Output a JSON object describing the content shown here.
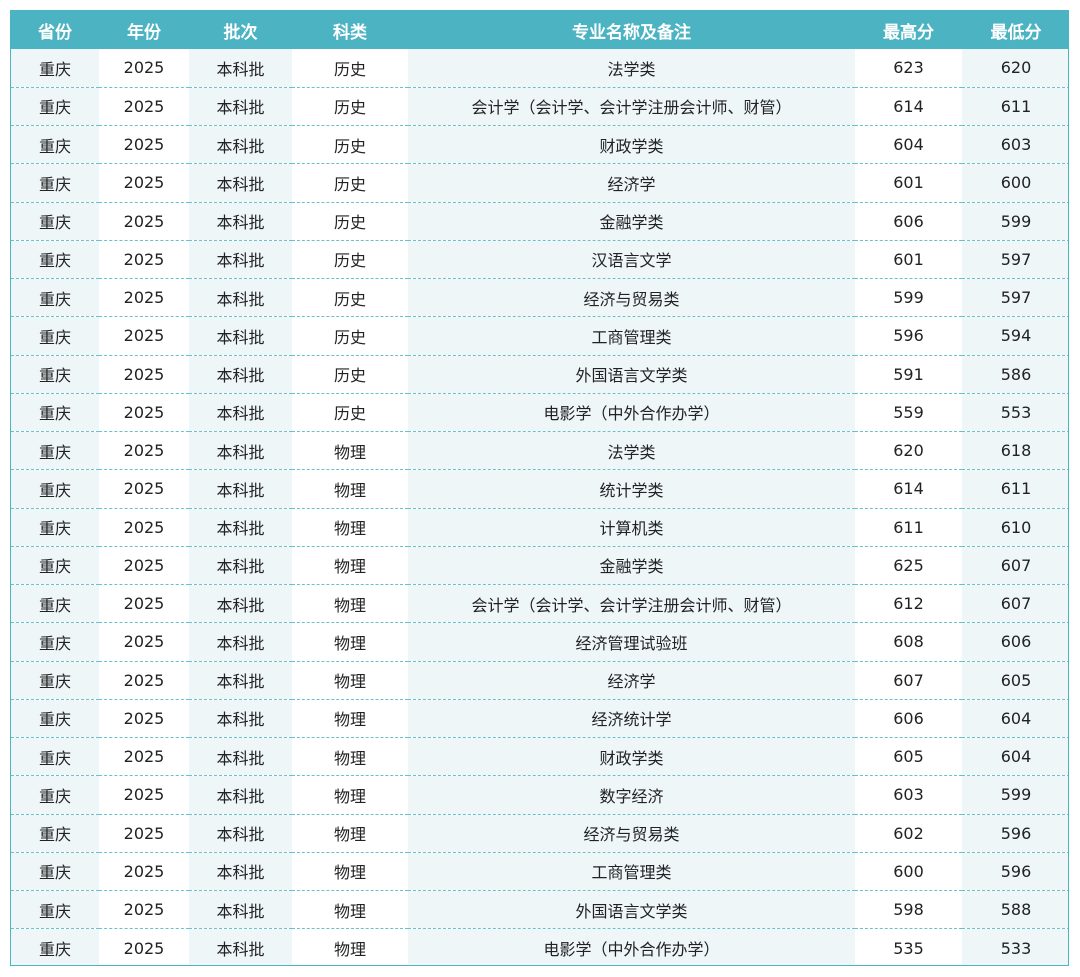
{
  "table": {
    "headers": [
      "省份",
      "年份",
      "批次",
      "科类",
      "专业名称及备注",
      "最高分",
      "最低分"
    ],
    "rows": [
      [
        "重庆",
        "2025",
        "本科批",
        "历史",
        "法学类",
        "623",
        "620"
      ],
      [
        "重庆",
        "2025",
        "本科批",
        "历史",
        "会计学（会计学、会计学注册会计师、财管）",
        "614",
        "611"
      ],
      [
        "重庆",
        "2025",
        "本科批",
        "历史",
        "财政学类",
        "604",
        "603"
      ],
      [
        "重庆",
        "2025",
        "本科批",
        "历史",
        "经济学",
        "601",
        "600"
      ],
      [
        "重庆",
        "2025",
        "本科批",
        "历史",
        "金融学类",
        "606",
        "599"
      ],
      [
        "重庆",
        "2025",
        "本科批",
        "历史",
        "汉语言文学",
        "601",
        "597"
      ],
      [
        "重庆",
        "2025",
        "本科批",
        "历史",
        "经济与贸易类",
        "599",
        "597"
      ],
      [
        "重庆",
        "2025",
        "本科批",
        "历史",
        "工商管理类",
        "596",
        "594"
      ],
      [
        "重庆",
        "2025",
        "本科批",
        "历史",
        "外国语言文学类",
        "591",
        "586"
      ],
      [
        "重庆",
        "2025",
        "本科批",
        "历史",
        "电影学（中外合作办学）",
        "559",
        "553"
      ],
      [
        "重庆",
        "2025",
        "本科批",
        "物理",
        "法学类",
        "620",
        "618"
      ],
      [
        "重庆",
        "2025",
        "本科批",
        "物理",
        "统计学类",
        "614",
        "611"
      ],
      [
        "重庆",
        "2025",
        "本科批",
        "物理",
        "计算机类",
        "611",
        "610"
      ],
      [
        "重庆",
        "2025",
        "本科批",
        "物理",
        "金融学类",
        "625",
        "607"
      ],
      [
        "重庆",
        "2025",
        "本科批",
        "物理",
        "会计学（会计学、会计学注册会计师、财管）",
        "612",
        "607"
      ],
      [
        "重庆",
        "2025",
        "本科批",
        "物理",
        "经济管理试验班",
        "608",
        "606"
      ],
      [
        "重庆",
        "2025",
        "本科批",
        "物理",
        "经济学",
        "607",
        "605"
      ],
      [
        "重庆",
        "2025",
        "本科批",
        "物理",
        "经济统计学",
        "606",
        "604"
      ],
      [
        "重庆",
        "2025",
        "本科批",
        "物理",
        "财政学类",
        "605",
        "604"
      ],
      [
        "重庆",
        "2025",
        "本科批",
        "物理",
        "数字经济",
        "603",
        "599"
      ],
      [
        "重庆",
        "2025",
        "本科批",
        "物理",
        "经济与贸易类",
        "602",
        "596"
      ],
      [
        "重庆",
        "2025",
        "本科批",
        "物理",
        "工商管理类",
        "600",
        "596"
      ],
      [
        "重庆",
        "2025",
        "本科批",
        "物理",
        "外国语言文学类",
        "598",
        "588"
      ],
      [
        "重庆",
        "2025",
        "本科批",
        "物理",
        "电影学（中外合作办学）",
        "535",
        "533"
      ]
    ]
  },
  "colors": {
    "header_bg": "#4bb3c2",
    "header_text": "#ffffff",
    "shade_column": "#eef6f8",
    "row_divider": "#6cc0cc"
  }
}
